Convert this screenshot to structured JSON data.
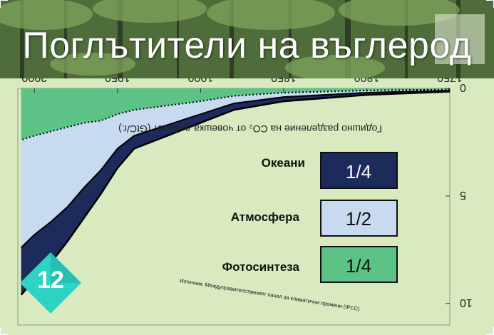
{
  "slide": {
    "title": "Поглътители на въглерод",
    "badge_number": "12"
  },
  "colors": {
    "oceans": "#1c2a5c",
    "atmosphere": "#c8daef",
    "photosynthesis": "#5cc285",
    "chart_bg": "#d9e9c0",
    "badge": "#2fd3c4"
  },
  "chart_data": {
    "type": "area",
    "orientation_note": "rotated 180 degrees",
    "title": "Годишно разделение на CO₂ от човешка дейност (GtC/г.)",
    "x": [
      1750,
      1800,
      1850,
      1880,
      1900,
      1920,
      1940,
      1950,
      1960,
      1970,
      1980,
      1990,
      2000,
      2008
    ],
    "xlim": [
      1750,
      2010
    ],
    "ylim": [
      0,
      11
    ],
    "x_ticks": [
      "1750",
      "1800",
      "1850",
      "1900",
      "1950",
      "2000"
    ],
    "y_ticks": [
      "0",
      "5",
      "10"
    ],
    "series": [
      {
        "name": "Фотосинтеза",
        "values": [
          0.05,
          0.1,
          0.2,
          0.35,
          0.6,
          0.8,
          1.0,
          1.2,
          1.5,
          1.6,
          1.8,
          2.0,
          2.2,
          2.4
        ]
      },
      {
        "name": "Атмосфера",
        "values": [
          0.05,
          0.1,
          0.2,
          0.35,
          0.6,
          0.9,
          1.2,
          1.6,
          2.3,
          3.0,
          3.7,
          4.2,
          4.6,
          5.0
        ]
      },
      {
        "name": "Океани",
        "values": [
          0.05,
          0.1,
          0.2,
          0.3,
          0.4,
          0.5,
          0.6,
          0.9,
          1.1,
          1.4,
          1.6,
          1.9,
          2.1,
          2.2
        ]
      }
    ],
    "legend": [
      {
        "name": "Океани",
        "share": "1/4"
      },
      {
        "name": "Атмосфера",
        "share": "1/2"
      },
      {
        "name": "Фотосинтеза",
        "share": "1/4"
      }
    ],
    "source": "Източник: Междуправителственият панел за климатични промени (IPCC)"
  }
}
